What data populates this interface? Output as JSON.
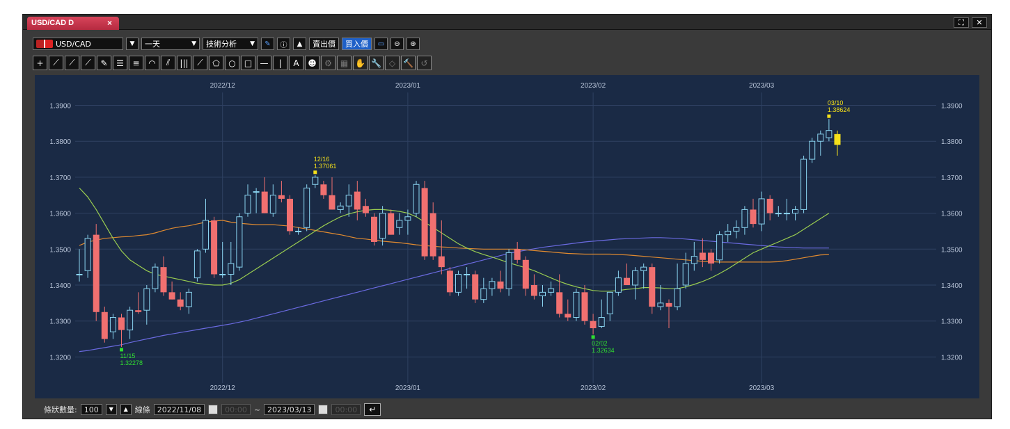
{
  "window": {
    "tab_title": "USD/CAD D",
    "tab_close": "×",
    "btn_maximize": "⛶",
    "btn_close": "✕"
  },
  "toolbar": {
    "symbol": "USD/CAD",
    "period": "一天",
    "technical": "技術分析",
    "info_icon": "ⓘ",
    "sell_label": "賣出價",
    "buy_label": "買入價"
  },
  "tools": [
    "+",
    "⟋",
    "⟋",
    "⟋",
    "✎",
    "☰",
    "≡",
    "◠",
    "⫽",
    "|||",
    "⟋",
    "⬠",
    "○",
    "□",
    "—",
    "|",
    "A",
    "☻",
    "⚙",
    "▦",
    "✋",
    "🔧",
    "◇",
    "🔨",
    "↺"
  ],
  "bottom": {
    "bar_count_label": "條狀數量:",
    "bar_count": "100",
    "line_label": "線條",
    "start_date": "2022/11/08",
    "start_time": "00:00",
    "tilde": "~",
    "end_date": "2023/03/13",
    "end_time": "00:00",
    "return_icon": "↵"
  },
  "colors": {
    "background": "#1a2a45",
    "up": "#8ad4f0",
    "down": "#f07070",
    "ma_short": "#9acd50",
    "ma_mid": "#e08a30",
    "ma_long": "#6a6ae0",
    "latest": "#f5e11a",
    "high_label": "#f5e11a",
    "low_label": "#30dd30"
  },
  "chart_data": {
    "type": "candlestick",
    "ylim": [
      1.315,
      1.398
    ],
    "yticks": [
      "1.3900",
      "1.3800",
      "1.3700",
      "1.3600",
      "1.3500",
      "1.3400",
      "1.3300",
      "1.3200"
    ],
    "month_labels": [
      "2022/12",
      "2023/01",
      "2023/02",
      "2023/03"
    ],
    "month_start_index": [
      17,
      39,
      61,
      81
    ],
    "candles": [
      [
        1.343,
        1.35,
        1.341,
        1.343
      ],
      [
        1.344,
        1.354,
        1.342,
        1.353
      ],
      [
        1.354,
        1.357,
        1.33,
        1.3325
      ],
      [
        1.3325,
        1.334,
        1.324,
        1.325
      ],
      [
        1.327,
        1.332,
        1.325,
        1.331
      ],
      [
        1.331,
        1.332,
        1.3228,
        1.3275
      ],
      [
        1.3275,
        1.334,
        1.325,
        1.333
      ],
      [
        1.333,
        1.338,
        1.332,
        1.3325
      ],
      [
        1.333,
        1.34,
        1.329,
        1.339
      ],
      [
        1.339,
        1.346,
        1.338,
        1.345
      ],
      [
        1.345,
        1.348,
        1.337,
        1.338
      ],
      [
        1.338,
        1.341,
        1.336,
        1.336
      ],
      [
        1.336,
        1.338,
        1.333,
        1.334
      ],
      [
        1.334,
        1.339,
        1.332,
        1.338
      ],
      [
        1.342,
        1.35,
        1.341,
        1.3495
      ],
      [
        1.35,
        1.364,
        1.349,
        1.358
      ],
      [
        1.358,
        1.359,
        1.342,
        1.343
      ],
      [
        1.343,
        1.352,
        1.342,
        1.343
      ],
      [
        1.343,
        1.352,
        1.34,
        1.346
      ],
      [
        1.345,
        1.36,
        1.344,
        1.359
      ],
      [
        1.36,
        1.368,
        1.359,
        1.365
      ],
      [
        1.366,
        1.367,
        1.36,
        1.366
      ],
      [
        1.366,
        1.37,
        1.36,
        1.36
      ],
      [
        1.36,
        1.368,
        1.359,
        1.365
      ],
      [
        1.365,
        1.369,
        1.363,
        1.364
      ],
      [
        1.364,
        1.365,
        1.354,
        1.355
      ],
      [
        1.355,
        1.356,
        1.354,
        1.355
      ],
      [
        1.356,
        1.368,
        1.355,
        1.367
      ],
      [
        1.368,
        1.3706,
        1.367,
        1.37
      ],
      [
        1.368,
        1.369,
        1.364,
        1.365
      ],
      [
        1.365,
        1.37,
        1.361,
        1.361
      ],
      [
        1.361,
        1.363,
        1.36,
        1.362
      ],
      [
        1.362,
        1.368,
        1.359,
        1.365
      ],
      [
        1.366,
        1.369,
        1.358,
        1.361
      ],
      [
        1.362,
        1.364,
        1.359,
        1.36
      ],
      [
        1.359,
        1.36,
        1.351,
        1.352
      ],
      [
        1.353,
        1.362,
        1.351,
        1.36
      ],
      [
        1.36,
        1.361,
        1.354,
        1.354
      ],
      [
        1.356,
        1.36,
        1.354,
        1.358
      ],
      [
        1.358,
        1.361,
        1.354,
        1.359
      ],
      [
        1.36,
        1.369,
        1.359,
        1.368
      ],
      [
        1.367,
        1.369,
        1.347,
        1.348
      ],
      [
        1.36,
        1.363,
        1.347,
        1.348
      ],
      [
        1.348,
        1.358,
        1.343,
        1.345
      ],
      [
        1.344,
        1.345,
        1.337,
        1.338
      ],
      [
        1.338,
        1.344,
        1.337,
        1.343
      ],
      [
        1.343,
        1.345,
        1.339,
        1.343
      ],
      [
        1.343,
        1.344,
        1.335,
        1.336
      ],
      [
        1.336,
        1.342,
        1.335,
        1.339
      ],
      [
        1.339,
        1.342,
        1.337,
        1.341
      ],
      [
        1.341,
        1.344,
        1.338,
        1.339
      ],
      [
        1.339,
        1.35,
        1.337,
        1.349
      ],
      [
        1.35,
        1.352,
        1.346,
        1.347
      ],
      [
        1.347,
        1.348,
        1.337,
        1.339
      ],
      [
        1.34,
        1.343,
        1.336,
        1.337
      ],
      [
        1.337,
        1.34,
        1.334,
        1.338
      ],
      [
        1.338,
        1.341,
        1.337,
        1.339
      ],
      [
        1.338,
        1.343,
        1.331,
        1.332
      ],
      [
        1.332,
        1.336,
        1.33,
        1.331
      ],
      [
        1.331,
        1.339,
        1.33,
        1.338
      ],
      [
        1.338,
        1.34,
        1.329,
        1.33
      ],
      [
        1.33,
        1.332,
        1.3263,
        1.328
      ],
      [
        1.3285,
        1.336,
        1.328,
        1.331
      ],
      [
        1.332,
        1.338,
        1.33,
        1.338
      ],
      [
        1.338,
        1.344,
        1.337,
        1.342
      ],
      [
        1.342,
        1.346,
        1.34,
        1.34
      ],
      [
        1.34,
        1.345,
        1.336,
        1.344
      ],
      [
        1.344,
        1.346,
        1.339,
        1.345
      ],
      [
        1.345,
        1.346,
        1.332,
        1.334
      ],
      [
        1.334,
        1.34,
        1.333,
        1.335
      ],
      [
        1.335,
        1.336,
        1.328,
        1.334
      ],
      [
        1.334,
        1.346,
        1.333,
        1.339
      ],
      [
        1.34,
        1.349,
        1.339,
        1.346
      ],
      [
        1.346,
        1.352,
        1.344,
        1.348
      ],
      [
        1.349,
        1.353,
        1.345,
        1.347
      ],
      [
        1.349,
        1.35,
        1.344,
        1.346
      ],
      [
        1.347,
        1.355,
        1.346,
        1.354
      ],
      [
        1.354,
        1.357,
        1.352,
        1.355
      ],
      [
        1.355,
        1.358,
        1.353,
        1.356
      ],
      [
        1.356,
        1.362,
        1.354,
        1.361
      ],
      [
        1.361,
        1.364,
        1.356,
        1.357
      ],
      [
        1.357,
        1.366,
        1.355,
        1.364
      ],
      [
        1.364,
        1.365,
        1.358,
        1.36
      ],
      [
        1.36,
        1.362,
        1.359,
        1.36
      ],
      [
        1.36,
        1.364,
        1.358,
        1.36
      ],
      [
        1.36,
        1.362,
        1.358,
        1.361
      ],
      [
        1.361,
        1.376,
        1.36,
        1.375
      ],
      [
        1.375,
        1.381,
        1.374,
        1.38
      ],
      [
        1.38,
        1.383,
        1.376,
        1.382
      ],
      [
        1.381,
        1.3862,
        1.38,
        1.383
      ],
      [
        1.382,
        1.383,
        1.376,
        1.379
      ]
    ],
    "ma_short": [
      1.367,
      1.3645,
      1.361,
      1.357,
      1.353,
      1.3495,
      1.347,
      1.3455,
      1.344,
      1.343,
      1.3425,
      1.342,
      1.3415,
      1.341,
      1.3405,
      1.3402,
      1.34,
      1.34,
      1.3405,
      1.3415,
      1.343,
      1.3445,
      1.346,
      1.3475,
      1.349,
      1.3505,
      1.352,
      1.3535,
      1.355,
      1.3565,
      1.3578,
      1.359,
      1.3598,
      1.3604,
      1.3608,
      1.361,
      1.361,
      1.3608,
      1.3605,
      1.36,
      1.359,
      1.3575,
      1.356,
      1.3545,
      1.353,
      1.3515,
      1.3503,
      1.3493,
      1.3485,
      1.3478,
      1.347,
      1.3462,
      1.3455,
      1.3448,
      1.344,
      1.343,
      1.342,
      1.341,
      1.3402,
      1.3395,
      1.339,
      1.3385,
      1.3383,
      1.3383,
      1.3385,
      1.3388,
      1.339,
      1.3393,
      1.3393,
      1.3392,
      1.339,
      1.339,
      1.3395,
      1.3402,
      1.341,
      1.342,
      1.3432,
      1.3445,
      1.346,
      1.3475,
      1.349,
      1.35,
      1.351,
      1.352,
      1.353,
      1.354,
      1.3555,
      1.357,
      1.3585,
      1.36
    ],
    "ma_mid": [
      1.351,
      1.352,
      1.3525,
      1.353,
      1.3532,
      1.3534,
      1.3535,
      1.3538,
      1.354,
      1.3545,
      1.3552,
      1.3558,
      1.3562,
      1.3565,
      1.357,
      1.3575,
      1.3578,
      1.358,
      1.3575,
      1.3572,
      1.357,
      1.3568,
      1.3568,
      1.3568,
      1.3566,
      1.3564,
      1.356,
      1.3556,
      1.3552,
      1.3548,
      1.3544,
      1.354,
      1.3535,
      1.353,
      1.3528,
      1.3525,
      1.3522,
      1.352,
      1.3518,
      1.3515,
      1.3512,
      1.351,
      1.3508,
      1.3506,
      1.3505,
      1.3503,
      1.3502,
      1.3501,
      1.35,
      1.35,
      1.35,
      1.35,
      1.35,
      1.3498,
      1.3496,
      1.3494,
      1.3492,
      1.349,
      1.3488,
      1.3487,
      1.3486,
      1.3486,
      1.3486,
      1.3486,
      1.3485,
      1.3484,
      1.3482,
      1.348,
      1.3478,
      1.3476,
      1.3474,
      1.3472,
      1.347,
      1.3468,
      1.3466,
      1.3465,
      1.3464,
      1.3464,
      1.3464,
      1.3464,
      1.3464,
      1.3464,
      1.3464,
      1.3465,
      1.3468,
      1.3472,
      1.3476,
      1.348,
      1.3484,
      1.3485
    ],
    "ma_long": [
      1.3215,
      1.3218,
      1.3222,
      1.3226,
      1.323,
      1.3234,
      1.324,
      1.3245,
      1.325,
      1.3255,
      1.326,
      1.3264,
      1.3268,
      1.3272,
      1.3276,
      1.328,
      1.3284,
      1.3288,
      1.3292,
      1.3297,
      1.3302,
      1.3308,
      1.3314,
      1.332,
      1.3326,
      1.3332,
      1.3338,
      1.3344,
      1.335,
      1.3356,
      1.3362,
      1.3368,
      1.3374,
      1.338,
      1.3386,
      1.3392,
      1.3398,
      1.3404,
      1.341,
      1.3416,
      1.3422,
      1.3428,
      1.3434,
      1.344,
      1.3446,
      1.3452,
      1.3458,
      1.3464,
      1.347,
      1.3476,
      1.3482,
      1.3488,
      1.3493,
      1.3497,
      1.3501,
      1.3505,
      1.3508,
      1.3511,
      1.3514,
      1.3517,
      1.352,
      1.3522,
      1.3524,
      1.3526,
      1.3528,
      1.3529,
      1.353,
      1.3531,
      1.3532,
      1.3532,
      1.3531,
      1.353,
      1.3528,
      1.3526,
      1.3524,
      1.3522,
      1.352,
      1.3518,
      1.3516,
      1.3514,
      1.3512,
      1.351,
      1.3508,
      1.3506,
      1.3505,
      1.3504,
      1.3503,
      1.3503,
      1.3503,
      1.3503
    ],
    "annotations": [
      {
        "date": "11/15",
        "value": "1.32278",
        "index": 5,
        "kind": "low"
      },
      {
        "date": "12/16",
        "value": "1.37061",
        "index": 28,
        "kind": "high"
      },
      {
        "date": "02/02",
        "value": "1.32634",
        "index": 61,
        "kind": "low"
      },
      {
        "date": "03/10",
        "value": "1.38624",
        "index": 89,
        "kind": "high"
      }
    ]
  }
}
